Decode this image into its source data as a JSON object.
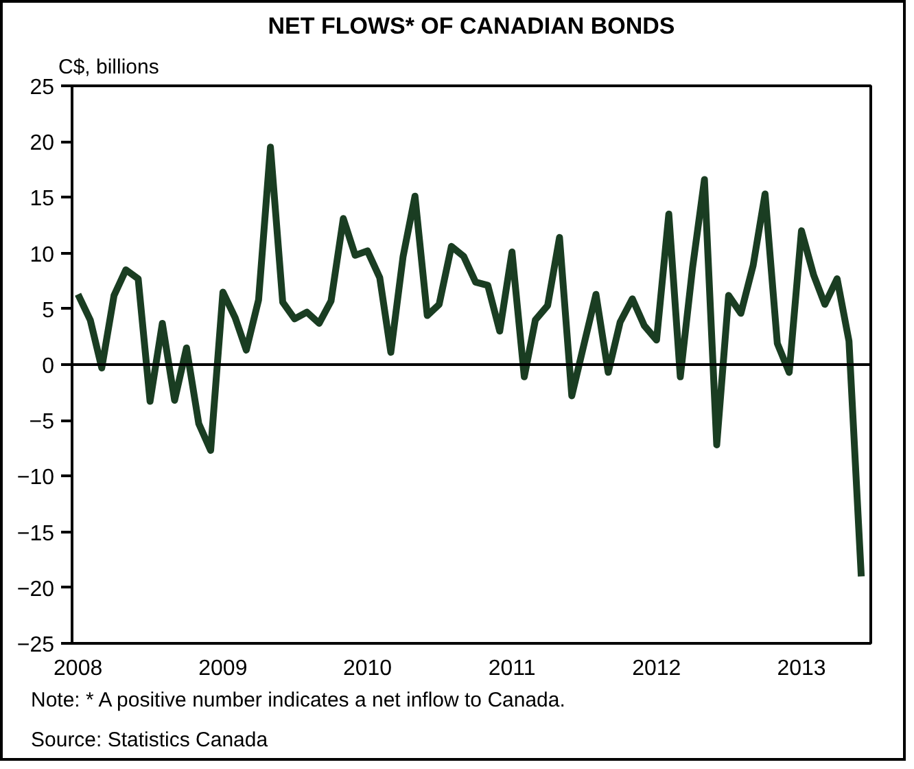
{
  "chart_data": {
    "type": "line",
    "title": "NET FLOWS* OF CANADIAN BONDS",
    "ylabel": "C$, billions",
    "x": [
      "2008-01",
      "2008-02",
      "2008-03",
      "2008-04",
      "2008-05",
      "2008-06",
      "2008-07",
      "2008-08",
      "2008-09",
      "2008-10",
      "2008-11",
      "2008-12",
      "2009-01",
      "2009-02",
      "2009-03",
      "2009-04",
      "2009-05",
      "2009-06",
      "2009-07",
      "2009-08",
      "2009-09",
      "2009-10",
      "2009-11",
      "2009-12",
      "2010-01",
      "2010-02",
      "2010-03",
      "2010-04",
      "2010-05",
      "2010-06",
      "2010-07",
      "2010-08",
      "2010-09",
      "2010-10",
      "2010-11",
      "2010-12",
      "2011-01",
      "2011-02",
      "2011-03",
      "2011-04",
      "2011-05",
      "2011-06",
      "2011-07",
      "2011-08",
      "2011-09",
      "2011-10",
      "2011-11",
      "2011-12",
      "2012-01",
      "2012-02",
      "2012-03",
      "2012-04",
      "2012-05",
      "2012-06",
      "2012-07",
      "2012-08",
      "2012-09",
      "2012-10",
      "2012-11",
      "2012-12",
      "2013-01",
      "2013-02",
      "2013-03",
      "2013-04",
      "2013-05",
      "2013-06"
    ],
    "series": [
      {
        "color": "#1a3d22",
        "values": [
          6.3,
          4.0,
          -0.3,
          6.2,
          8.5,
          7.7,
          -3.3,
          3.7,
          -3.2,
          1.5,
          -5.3,
          -7.7,
          6.5,
          4.2,
          1.3,
          5.8,
          19.5,
          5.6,
          4.1,
          4.7,
          3.7,
          5.7,
          13.1,
          9.8,
          10.2,
          7.8,
          1.1,
          9.7,
          15.1,
          4.4,
          5.4,
          10.6,
          9.7,
          7.4,
          7.1,
          3.0,
          10.1,
          -1.1,
          4.0,
          5.3,
          11.4,
          -2.8,
          1.7,
          6.3,
          -0.7,
          3.8,
          5.9,
          3.5,
          2.2,
          13.5,
          -1.1,
          8.7,
          16.6,
          -7.2,
          6.2,
          4.6,
          8.9,
          15.3,
          1.9,
          -0.7,
          12.0,
          8.0,
          5.4,
          7.7,
          2.1,
          -19.0
        ]
      }
    ],
    "xlim": [
      "2007-12-17",
      "2013-06-25"
    ],
    "xticks": [
      "2008",
      "2009",
      "2010",
      "2011",
      "2012",
      "2013"
    ],
    "ylim": [
      -25,
      25
    ],
    "yticks": [
      -25,
      -20,
      -15,
      -10,
      -5,
      0,
      5,
      10,
      15,
      20,
      25
    ],
    "ref_lines": [
      {
        "axis": "y",
        "value": 0,
        "color": "#000000"
      }
    ],
    "grid": false,
    "marker": "none",
    "line_style": "solid",
    "annotations": [
      "Note: * A positive number indicates a net inflow to Canada.",
      "Source: Statistics Canada"
    ]
  }
}
